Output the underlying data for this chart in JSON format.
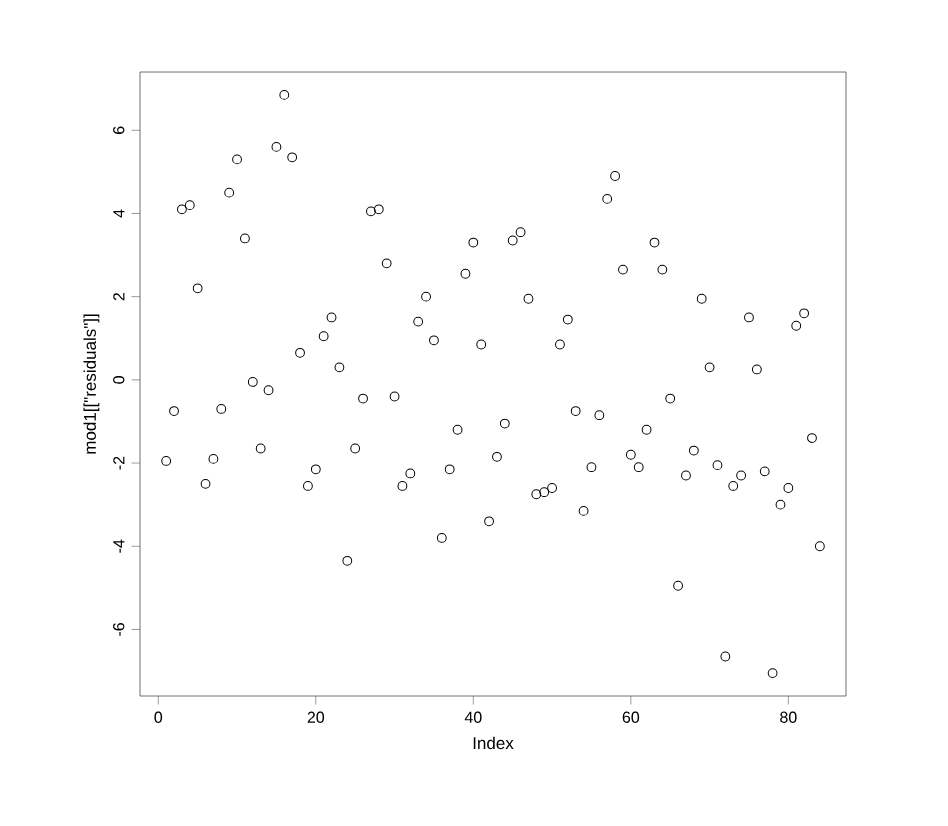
{
  "chart_data": {
    "type": "scatter",
    "xlabel": "Index",
    "ylabel": "mod1[[\"residuals\"]]",
    "x": [
      1,
      2,
      3,
      4,
      5,
      6,
      7,
      8,
      9,
      10,
      11,
      12,
      13,
      14,
      15,
      16,
      17,
      18,
      19,
      20,
      21,
      22,
      23,
      24,
      25,
      26,
      27,
      28,
      29,
      30,
      31,
      32,
      33,
      34,
      35,
      36,
      37,
      38,
      39,
      40,
      41,
      42,
      43,
      44,
      45,
      46,
      47,
      48,
      49,
      50,
      51,
      52,
      53,
      54,
      55,
      56,
      57,
      58,
      59,
      60,
      61,
      62,
      63,
      64,
      65,
      66,
      67,
      68,
      69,
      70,
      71,
      72,
      73,
      74,
      75,
      76,
      77,
      78,
      79,
      80,
      81,
      82,
      83,
      84
    ],
    "values": [
      -1.95,
      -0.75,
      4.1,
      4.2,
      2.2,
      -2.5,
      -1.9,
      -0.7,
      4.5,
      5.3,
      3.4,
      -0.05,
      -1.65,
      -0.25,
      5.6,
      6.85,
      5.35,
      0.65,
      -2.55,
      -2.15,
      1.05,
      1.5,
      0.3,
      -4.35,
      -1.65,
      -0.45,
      4.05,
      4.1,
      2.8,
      -0.4,
      -2.55,
      -2.25,
      1.4,
      2.0,
      0.95,
      -3.8,
      -2.15,
      -1.2,
      2.55,
      3.3,
      0.85,
      -3.4,
      -1.85,
      -1.05,
      3.35,
      3.55,
      1.95,
      -2.75,
      -2.7,
      -2.6,
      0.85,
      1.45,
      -0.75,
      -3.15,
      -2.1,
      -0.85,
      4.35,
      4.9,
      2.65,
      -1.8,
      -2.1,
      -1.2,
      3.3,
      2.65,
      -0.45,
      -4.95,
      -2.3,
      -1.7,
      1.95,
      0.3,
      -2.05,
      -6.65,
      -2.55,
      -2.3,
      1.5,
      0.25,
      -2.2,
      -7.05,
      -3.0,
      -2.6,
      1.3,
      1.6,
      -1.4,
      -4.0
    ],
    "color": "#000000",
    "marker": "circle",
    "xlim": [
      -2.32,
      87.32
    ],
    "ylim": [
      -7.6,
      7.4
    ],
    "xticks": [
      0,
      20,
      40,
      60,
      80
    ],
    "yticks": [
      -6,
      -4,
      -2,
      0,
      2,
      4,
      6
    ]
  }
}
